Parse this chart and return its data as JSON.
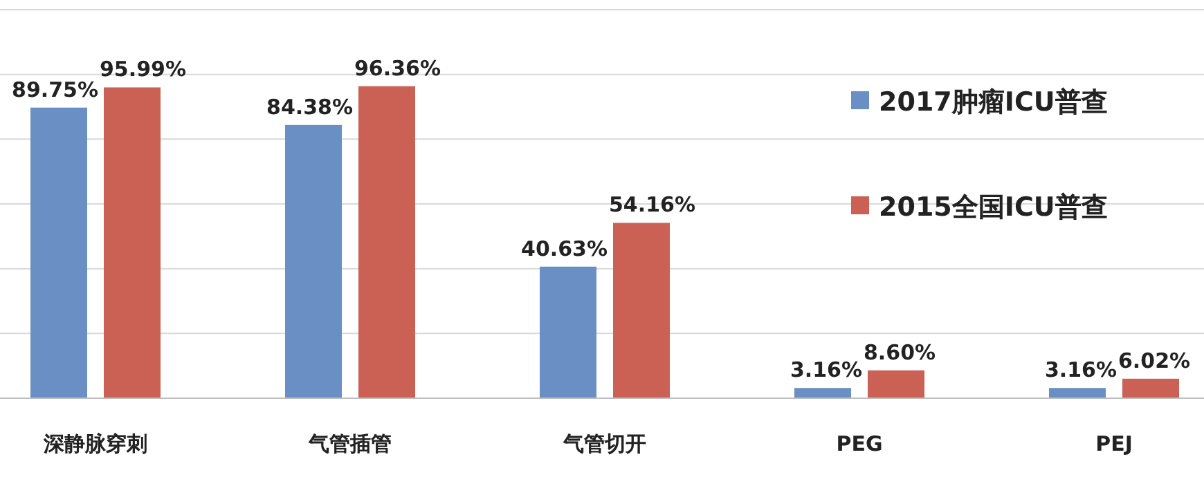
{
  "chart_data": {
    "type": "bar",
    "categories": [
      "深静脉穿刺",
      "气管插管",
      "气管切开",
      "PEG",
      "PEJ"
    ],
    "series": [
      {
        "name": "2017肿瘤ICU普查",
        "color": "#6a8fc4",
        "values": [
          89.75,
          84.38,
          40.63,
          3.16,
          3.16
        ],
        "value_labels": [
          "89.75%",
          "84.38%",
          "40.63%",
          "3.16%",
          "3.16%"
        ]
      },
      {
        "name": "2015全国ICU普查",
        "color": "#cb6055",
        "values": [
          95.99,
          96.36,
          54.16,
          8.6,
          6.02
        ],
        "value_labels": [
          "95.99%",
          "96.36%",
          "54.16%",
          "8.60%",
          "6.02%"
        ]
      }
    ],
    "ylim": [
      0,
      120
    ],
    "yticks": [
      {
        "value": 0,
        "label": null
      },
      {
        "value": 20,
        "label": null
      },
      {
        "value": 40,
        "label": null
      },
      {
        "value": 60,
        "label": null
      },
      {
        "value": 80,
        "label": null
      },
      {
        "value": 100,
        "label": null
      },
      {
        "value": 120,
        "label": null
      }
    ],
    "grid": "y",
    "legend": "right"
  }
}
